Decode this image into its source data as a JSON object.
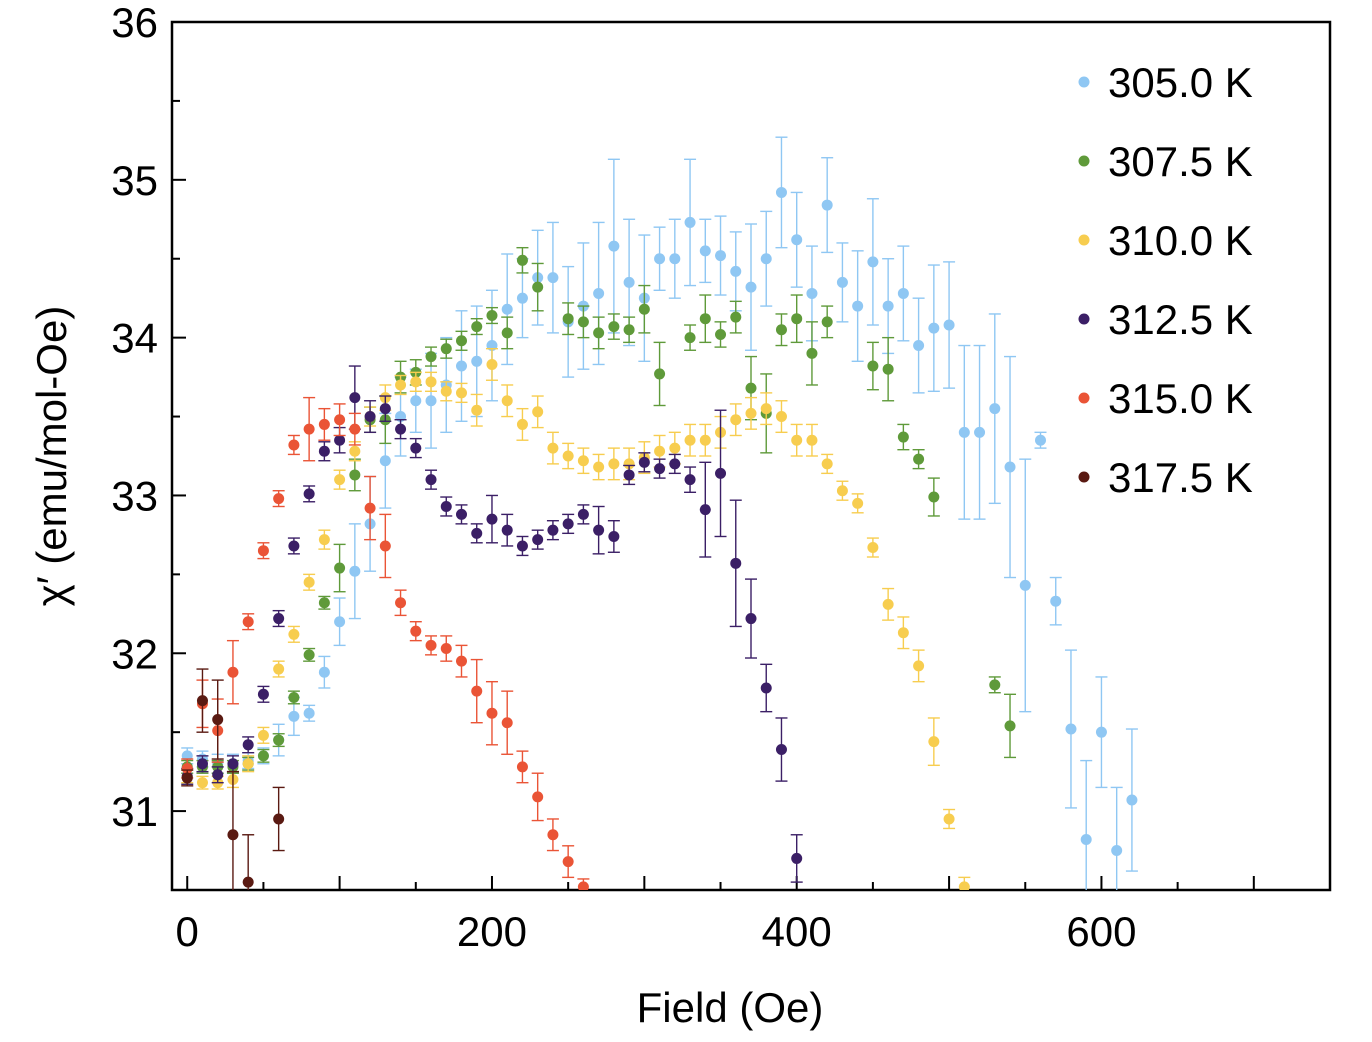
{
  "chart_data": {
    "type": "scatter",
    "title": "",
    "xlabel": "Field (Oe)",
    "ylabel": "χ′ (emu/mol-Oe)",
    "xlim": [
      -10,
      750
    ],
    "ylim": [
      30.5,
      36
    ],
    "x_ticks": [
      0,
      200,
      400,
      600
    ],
    "y_ticks": [
      31,
      32,
      33,
      34,
      35,
      36
    ],
    "legend_position": "top-right",
    "series": [
      {
        "name": "305.0 K",
        "color": "#8fc7f3",
        "points": [
          [
            0,
            31.35,
            0.05
          ],
          [
            10,
            31.33,
            0.05
          ],
          [
            20,
            31.3,
            0.06
          ],
          [
            30,
            31.3,
            0.06
          ],
          [
            40,
            31.32,
            0.05
          ],
          [
            50,
            31.35,
            0.05
          ],
          [
            60,
            31.45,
            0.1
          ],
          [
            70,
            31.6,
            0.12
          ],
          [
            80,
            31.62,
            0.05
          ],
          [
            90,
            31.88,
            0.1
          ],
          [
            100,
            32.2,
            0.15
          ],
          [
            110,
            32.52,
            0.3
          ],
          [
            120,
            32.82,
            0.3
          ],
          [
            130,
            33.22,
            0.3
          ],
          [
            140,
            33.5,
            0.25
          ],
          [
            150,
            33.6,
            0.2
          ],
          [
            160,
            33.6,
            0.3
          ],
          [
            170,
            33.7,
            0.3
          ],
          [
            180,
            33.82,
            0.35
          ],
          [
            190,
            33.85,
            0.35
          ],
          [
            200,
            33.95,
            0.35
          ],
          [
            210,
            34.18,
            0.35
          ],
          [
            220,
            34.25,
            0.25
          ],
          [
            230,
            34.38,
            0.3
          ],
          [
            240,
            34.38,
            0.35
          ],
          [
            250,
            34.1,
            0.35
          ],
          [
            260,
            34.2,
            0.4
          ],
          [
            270,
            34.28,
            0.45
          ],
          [
            280,
            34.58,
            0.55
          ],
          [
            290,
            34.35,
            0.4
          ],
          [
            300,
            34.25,
            0.4
          ],
          [
            310,
            34.5,
            0.2
          ],
          [
            320,
            34.5,
            0.25
          ],
          [
            330,
            34.73,
            0.4
          ],
          [
            340,
            34.55,
            0.2
          ],
          [
            350,
            34.52,
            0.25
          ],
          [
            360,
            34.42,
            0.25
          ],
          [
            370,
            34.32,
            0.4
          ],
          [
            380,
            34.5,
            0.3
          ],
          [
            390,
            34.92,
            0.35
          ],
          [
            400,
            34.62,
            0.3
          ],
          [
            410,
            34.28,
            0.3
          ],
          [
            420,
            34.84,
            0.3
          ],
          [
            430,
            34.35,
            0.25
          ],
          [
            440,
            34.2,
            0.35
          ],
          [
            450,
            34.48,
            0.4
          ],
          [
            460,
            34.2,
            0.3
          ],
          [
            470,
            34.28,
            0.3
          ],
          [
            480,
            33.95,
            0.3
          ],
          [
            490,
            34.06,
            0.4
          ],
          [
            500,
            34.08,
            0.4
          ],
          [
            510,
            33.4,
            0.55
          ],
          [
            520,
            33.4,
            0.55
          ],
          [
            530,
            33.55,
            0.6
          ],
          [
            540,
            33.18,
            0.7
          ],
          [
            550,
            32.43,
            0.8
          ],
          [
            560,
            33.35,
            0.05
          ],
          [
            570,
            32.33,
            0.15
          ],
          [
            580,
            31.52,
            0.5
          ],
          [
            590,
            30.82,
            0.5
          ],
          [
            600,
            31.5,
            0.35
          ],
          [
            610,
            30.75,
            0.4
          ],
          [
            620,
            31.07,
            0.45
          ]
        ]
      },
      {
        "name": "307.5 K",
        "color": "#5f9a3a",
        "points": [
          [
            0,
            31.28,
            0.04
          ],
          [
            10,
            31.28,
            0.04
          ],
          [
            20,
            31.28,
            0.04
          ],
          [
            30,
            31.28,
            0.04
          ],
          [
            40,
            31.3,
            0.04
          ],
          [
            50,
            31.35,
            0.04
          ],
          [
            60,
            31.45,
            0.04
          ],
          [
            70,
            31.72,
            0.04
          ],
          [
            80,
            31.99,
            0.04
          ],
          [
            90,
            32.32,
            0.04
          ],
          [
            100,
            32.54,
            0.15
          ],
          [
            110,
            33.13,
            0.1
          ],
          [
            120,
            33.48,
            0.08
          ],
          [
            130,
            33.48,
            0.15
          ],
          [
            140,
            33.75,
            0.1
          ],
          [
            150,
            33.78,
            0.08
          ],
          [
            160,
            33.88,
            0.06
          ],
          [
            170,
            33.93,
            0.06
          ],
          [
            180,
            33.98,
            0.06
          ],
          [
            190,
            34.07,
            0.05
          ],
          [
            200,
            34.14,
            0.05
          ],
          [
            210,
            34.03,
            0.1
          ],
          [
            220,
            34.49,
            0.08
          ],
          [
            230,
            34.32,
            0.15
          ],
          [
            250,
            34.12,
            0.1
          ],
          [
            260,
            34.1,
            0.1
          ],
          [
            270,
            34.03,
            0.1
          ],
          [
            280,
            34.07,
            0.08
          ],
          [
            290,
            34.05,
            0.08
          ],
          [
            300,
            34.18,
            0.15
          ],
          [
            310,
            33.77,
            0.2
          ],
          [
            330,
            34.0,
            0.08
          ],
          [
            340,
            34.12,
            0.15
          ],
          [
            350,
            34.02,
            0.08
          ],
          [
            360,
            34.13,
            0.1
          ],
          [
            370,
            33.68,
            0.2
          ],
          [
            380,
            33.52,
            0.25
          ],
          [
            390,
            34.05,
            0.1
          ],
          [
            400,
            34.12,
            0.15
          ],
          [
            410,
            33.9,
            0.2
          ],
          [
            420,
            34.1,
            0.1
          ],
          [
            450,
            33.82,
            0.15
          ],
          [
            460,
            33.8,
            0.2
          ],
          [
            470,
            33.37,
            0.08
          ],
          [
            480,
            33.23,
            0.06
          ],
          [
            490,
            32.99,
            0.12
          ],
          [
            530,
            31.8,
            0.05
          ],
          [
            540,
            31.54,
            0.2
          ]
        ]
      },
      {
        "name": "310.0 K",
        "color": "#f7cd4f",
        "points": [
          [
            0,
            31.22,
            0.04
          ],
          [
            10,
            31.18,
            0.04
          ],
          [
            20,
            31.18,
            0.04
          ],
          [
            30,
            31.2,
            0.05
          ],
          [
            40,
            31.3,
            0.05
          ],
          [
            50,
            31.48,
            0.05
          ],
          [
            60,
            31.9,
            0.05
          ],
          [
            70,
            32.12,
            0.05
          ],
          [
            80,
            32.45,
            0.05
          ],
          [
            90,
            32.72,
            0.06
          ],
          [
            100,
            33.1,
            0.06
          ],
          [
            110,
            33.28,
            0.06
          ],
          [
            120,
            33.5,
            0.06
          ],
          [
            130,
            33.62,
            0.08
          ],
          [
            140,
            33.7,
            0.06
          ],
          [
            150,
            33.72,
            0.06
          ],
          [
            160,
            33.72,
            0.06
          ],
          [
            170,
            33.66,
            0.06
          ],
          [
            180,
            33.65,
            0.06
          ],
          [
            190,
            33.54,
            0.1
          ],
          [
            200,
            33.83,
            0.1
          ],
          [
            210,
            33.6,
            0.1
          ],
          [
            220,
            33.45,
            0.1
          ],
          [
            230,
            33.53,
            0.1
          ],
          [
            240,
            33.3,
            0.1
          ],
          [
            250,
            33.25,
            0.08
          ],
          [
            260,
            33.22,
            0.08
          ],
          [
            270,
            33.18,
            0.08
          ],
          [
            280,
            33.2,
            0.1
          ],
          [
            290,
            33.2,
            0.1
          ],
          [
            300,
            33.24,
            0.1
          ],
          [
            310,
            33.28,
            0.1
          ],
          [
            320,
            33.3,
            0.1
          ],
          [
            330,
            33.35,
            0.1
          ],
          [
            340,
            33.35,
            0.1
          ],
          [
            350,
            33.4,
            0.1
          ],
          [
            360,
            33.48,
            0.1
          ],
          [
            370,
            33.52,
            0.1
          ],
          [
            380,
            33.55,
            0.1
          ],
          [
            390,
            33.5,
            0.1
          ],
          [
            400,
            33.35,
            0.1
          ],
          [
            410,
            33.35,
            0.1
          ],
          [
            420,
            33.2,
            0.06
          ],
          [
            430,
            33.03,
            0.06
          ],
          [
            440,
            32.95,
            0.06
          ],
          [
            450,
            32.67,
            0.06
          ],
          [
            460,
            32.31,
            0.1
          ],
          [
            470,
            32.13,
            0.1
          ],
          [
            480,
            31.92,
            0.1
          ],
          [
            490,
            31.44,
            0.15
          ],
          [
            500,
            30.95,
            0.06
          ],
          [
            510,
            30.52,
            0.06
          ]
        ]
      },
      {
        "name": "312.5 K",
        "color": "#3b1f66",
        "points": [
          [
            0,
            31.22,
            0.05
          ],
          [
            10,
            31.3,
            0.05
          ],
          [
            20,
            31.23,
            0.05
          ],
          [
            30,
            31.3,
            0.05
          ],
          [
            40,
            31.42,
            0.05
          ],
          [
            50,
            31.74,
            0.05
          ],
          [
            60,
            32.22,
            0.05
          ],
          [
            70,
            32.68,
            0.05
          ],
          [
            80,
            33.01,
            0.05
          ],
          [
            90,
            33.28,
            0.06
          ],
          [
            100,
            33.35,
            0.08
          ],
          [
            110,
            33.62,
            0.2
          ],
          [
            120,
            33.5,
            0.1
          ],
          [
            130,
            33.55,
            0.08
          ],
          [
            140,
            33.42,
            0.06
          ],
          [
            150,
            33.3,
            0.06
          ],
          [
            160,
            33.1,
            0.06
          ],
          [
            170,
            32.93,
            0.06
          ],
          [
            180,
            32.88,
            0.06
          ],
          [
            190,
            32.76,
            0.06
          ],
          [
            200,
            32.85,
            0.15
          ],
          [
            210,
            32.78,
            0.1
          ],
          [
            220,
            32.68,
            0.06
          ],
          [
            230,
            32.72,
            0.06
          ],
          [
            240,
            32.78,
            0.06
          ],
          [
            250,
            32.82,
            0.06
          ],
          [
            260,
            32.88,
            0.06
          ],
          [
            270,
            32.78,
            0.15
          ],
          [
            280,
            32.74,
            0.1
          ],
          [
            290,
            33.13,
            0.06
          ],
          [
            300,
            33.21,
            0.06
          ],
          [
            310,
            33.17,
            0.06
          ],
          [
            320,
            33.2,
            0.06
          ],
          [
            330,
            33.1,
            0.08
          ],
          [
            340,
            32.91,
            0.3
          ],
          [
            350,
            33.14,
            0.4
          ],
          [
            360,
            32.57,
            0.4
          ],
          [
            370,
            32.22,
            0.25
          ],
          [
            380,
            31.78,
            0.15
          ],
          [
            390,
            31.39,
            0.2
          ],
          [
            400,
            30.7,
            0.15
          ]
        ]
      },
      {
        "name": "315.0 K",
        "color": "#ea5436",
        "points": [
          [
            0,
            31.27,
            0.06
          ],
          [
            10,
            31.68,
            0.15
          ],
          [
            20,
            31.51,
            0.2
          ],
          [
            30,
            31.88,
            0.2
          ],
          [
            40,
            32.2,
            0.05
          ],
          [
            50,
            32.65,
            0.05
          ],
          [
            60,
            32.98,
            0.05
          ],
          [
            70,
            33.32,
            0.06
          ],
          [
            80,
            33.42,
            0.2
          ],
          [
            90,
            33.45,
            0.1
          ],
          [
            100,
            33.48,
            0.1
          ],
          [
            110,
            33.42,
            0.1
          ],
          [
            120,
            32.92,
            0.2
          ],
          [
            130,
            32.68,
            0.2
          ],
          [
            140,
            32.32,
            0.08
          ],
          [
            150,
            32.14,
            0.06
          ],
          [
            160,
            32.05,
            0.06
          ],
          [
            170,
            32.03,
            0.08
          ],
          [
            180,
            31.95,
            0.1
          ],
          [
            190,
            31.76,
            0.2
          ],
          [
            200,
            31.62,
            0.2
          ],
          [
            210,
            31.56,
            0.2
          ],
          [
            220,
            31.28,
            0.1
          ],
          [
            230,
            31.09,
            0.15
          ],
          [
            240,
            30.85,
            0.1
          ],
          [
            250,
            30.68,
            0.1
          ],
          [
            260,
            30.52,
            0.05
          ]
        ]
      },
      {
        "name": "317.5 K",
        "color": "#5a1a12",
        "points": [
          [
            0,
            31.21,
            0.05
          ],
          [
            10,
            31.7,
            0.2
          ],
          [
            20,
            31.58,
            0.25
          ],
          [
            30,
            30.85,
            0.4
          ],
          [
            40,
            30.55,
            0.3
          ],
          [
            60,
            30.95,
            0.2
          ]
        ]
      }
    ]
  }
}
